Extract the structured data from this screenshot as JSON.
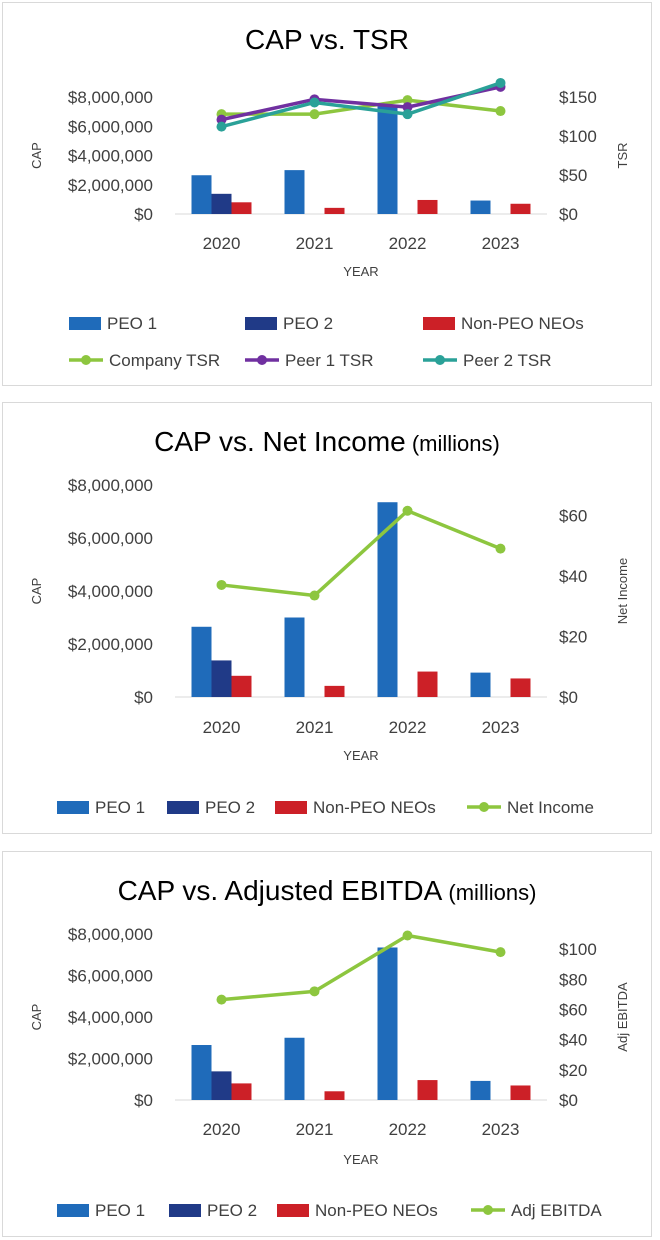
{
  "chart_data": [
    {
      "type": "bar+line",
      "title": "CAP vs. TSR",
      "title_suffix": "",
      "xlabel": "YEAR",
      "ylabel": "CAP",
      "y2label": "TSR",
      "categories": [
        "2020",
        "2021",
        "2022",
        "2023"
      ],
      "ylim": [
        0,
        8000000
      ],
      "yticks": [
        "$0",
        "$2,000,000",
        "$4,000,000",
        "$6,000,000",
        "$8,000,000"
      ],
      "y2lim": [
        0,
        150
      ],
      "y2ticks": [
        "$0",
        "$50",
        "$100",
        "$150"
      ],
      "bar_series": [
        {
          "name": "PEO 1",
          "values": [
            2650000,
            3000000,
            7350000,
            920000
          ],
          "color": "#1f6bba"
        },
        {
          "name": "PEO 2",
          "values": [
            1380000,
            null,
            null,
            null
          ],
          "color": "#203a87"
        },
        {
          "name": "Non-PEO NEOs",
          "values": [
            800000,
            420000,
            960000,
            700000
          ],
          "color": "#cc2027"
        }
      ],
      "line_series": [
        {
          "name": "Company TSR",
          "values": [
            128,
            128,
            146,
            132
          ],
          "color": "#8dc63f"
        },
        {
          "name": "Peer 1 TSR",
          "values": [
            121,
            147,
            137,
            163
          ],
          "color": "#7030a0"
        },
        {
          "name": "Peer 2 TSR",
          "values": [
            112,
            143,
            128,
            168
          ],
          "color": "#2aa198"
        }
      ],
      "legend": [
        "PEO 1",
        "PEO 2",
        "Non-PEO NEOs",
        "Company TSR",
        "Peer 1 TSR",
        "Peer 2 TSR"
      ]
    },
    {
      "type": "bar+line",
      "title": "CAP vs. Net Income",
      "title_suffix": "(millions)",
      "xlabel": "YEAR",
      "ylabel": "CAP",
      "y2label": "Net Income",
      "categories": [
        "2020",
        "2021",
        "2022",
        "2023"
      ],
      "ylim": [
        0,
        8000000
      ],
      "yticks": [
        "$0",
        "$2,000,000",
        "$4,000,000",
        "$6,000,000",
        "$8,000,000"
      ],
      "y2lim": [
        0,
        70
      ],
      "y2ticks": [
        "$0",
        "$20",
        "$40",
        "$60"
      ],
      "bar_series": [
        {
          "name": "PEO 1",
          "values": [
            2650000,
            3000000,
            7350000,
            920000
          ],
          "color": "#1f6bba"
        },
        {
          "name": "PEO 2",
          "values": [
            1380000,
            null,
            null,
            null
          ],
          "color": "#203a87"
        },
        {
          "name": "Non-PEO NEOs",
          "values": [
            800000,
            420000,
            960000,
            700000
          ],
          "color": "#cc2027"
        }
      ],
      "line_series": [
        {
          "name": "Net Income",
          "values": [
            37,
            33.5,
            61.5,
            49
          ],
          "color": "#8dc63f"
        }
      ],
      "legend": [
        "PEO 1",
        "PEO 2",
        "Non-PEO NEOs",
        "Net Income"
      ]
    },
    {
      "type": "bar+line",
      "title": "CAP vs. Adjusted EBITDA",
      "title_suffix": "(millions)",
      "xlabel": "YEAR",
      "ylabel": "CAP",
      "y2label": "Adj EBITDA",
      "categories": [
        "2020",
        "2021",
        "2022",
        "2023"
      ],
      "ylim": [
        0,
        8000000
      ],
      "yticks": [
        "$0",
        "$2,000,000",
        "$4,000,000",
        "$6,000,000",
        "$8,000,000"
      ],
      "y2lim": [
        0,
        110
      ],
      "y2ticks": [
        "$0",
        "$20",
        "$40",
        "$60",
        "$80",
        "$100"
      ],
      "bar_series": [
        {
          "name": "PEO 1",
          "values": [
            2650000,
            3000000,
            7350000,
            920000
          ],
          "color": "#1f6bba"
        },
        {
          "name": "PEO 2",
          "values": [
            1380000,
            null,
            null,
            null
          ],
          "color": "#203a87"
        },
        {
          "name": "Non-PEO NEOs",
          "values": [
            800000,
            420000,
            960000,
            700000
          ],
          "color": "#cc2027"
        }
      ],
      "line_series": [
        {
          "name": "Adj EBITDA",
          "values": [
            66.5,
            72,
            109,
            98
          ],
          "color": "#8dc63f"
        }
      ],
      "legend": [
        "PEO 1",
        "PEO 2",
        "Non-PEO NEOs",
        "Adj EBITDA"
      ]
    }
  ]
}
